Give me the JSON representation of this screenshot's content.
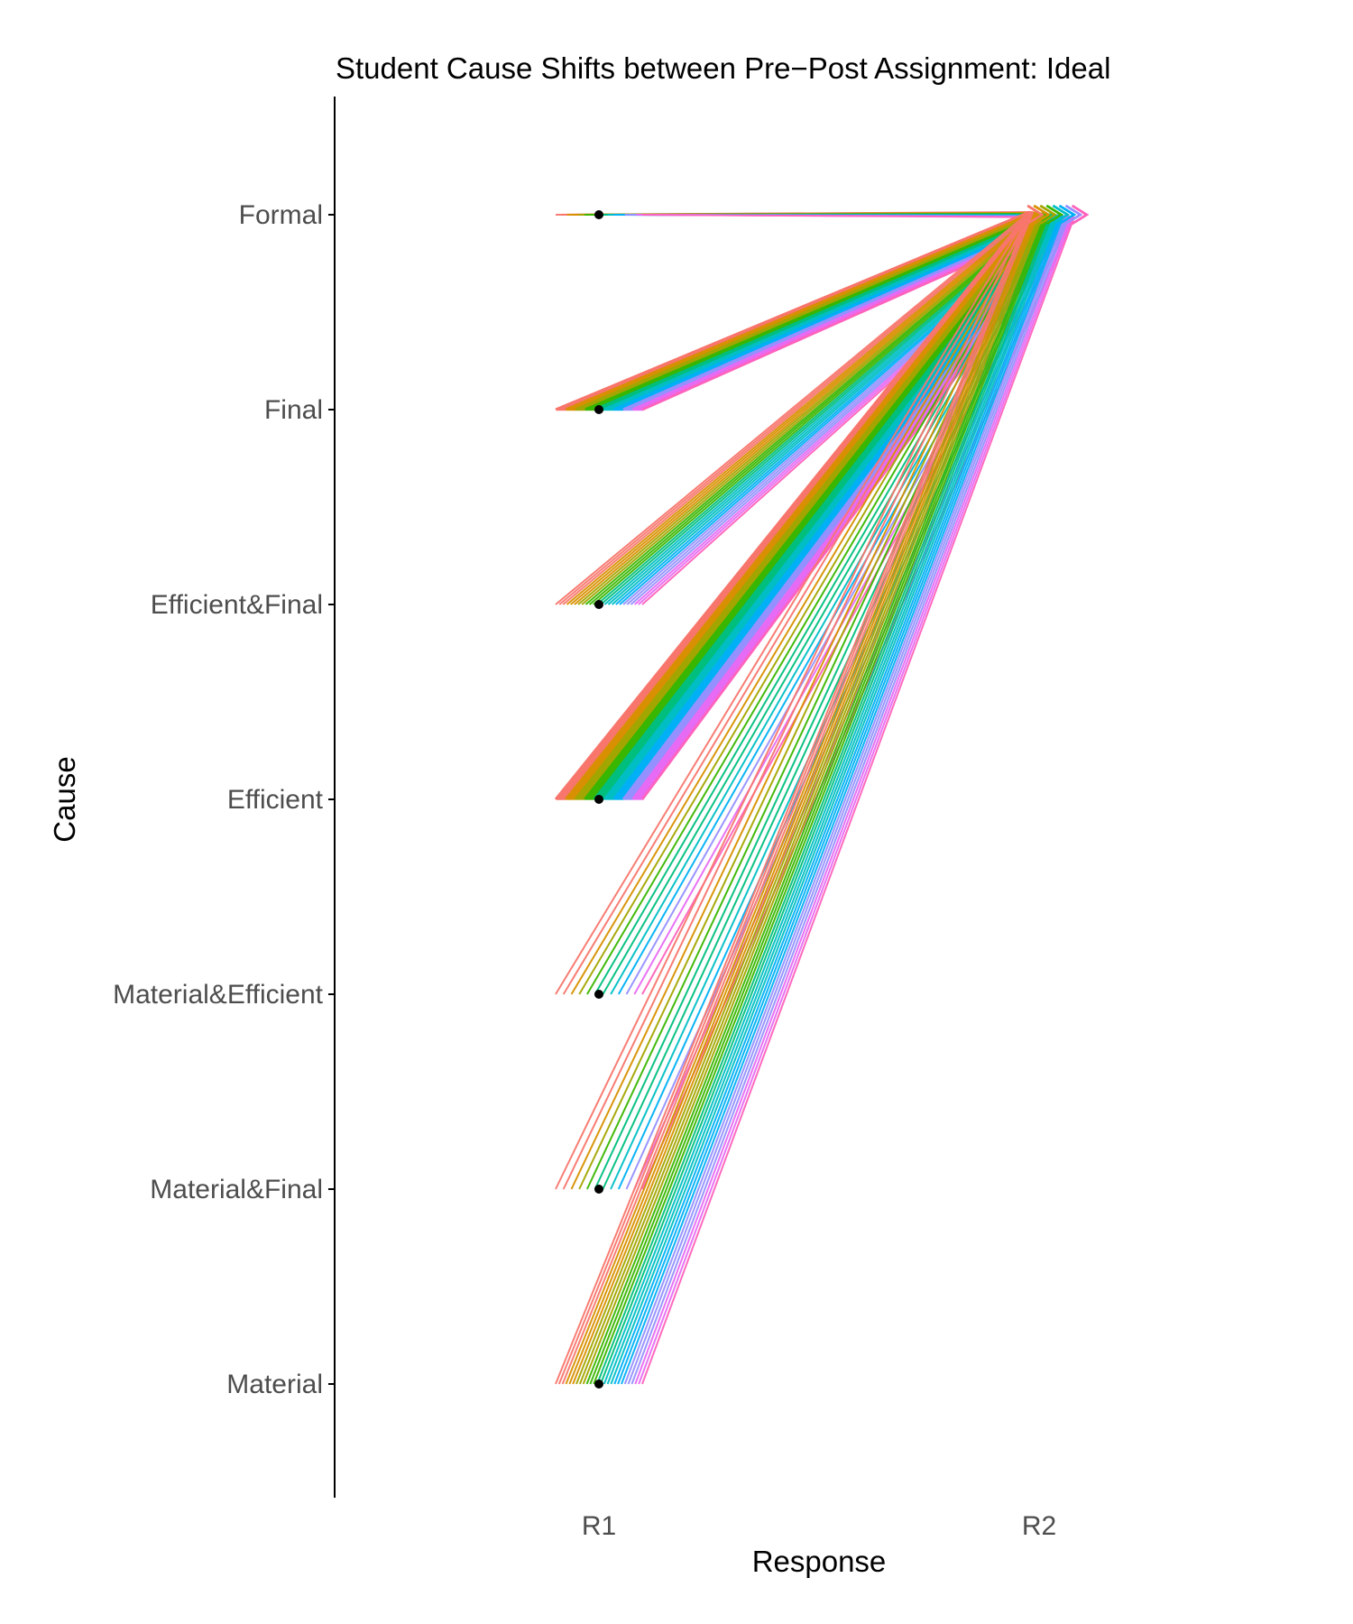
{
  "chart_data": {
    "type": "line",
    "title": "Student Cause Shifts between Pre−Post Assignment: Ideal",
    "xlabel": "Response",
    "ylabel": "Cause",
    "categories_x": [
      "R1",
      "R2"
    ],
    "categories_y": [
      "Formal",
      "Final",
      "Efficient&Final",
      "Efficient",
      "Material&Efficient",
      "Material&Final",
      "Material"
    ],
    "grid": false,
    "legend": "none",
    "target": "Formal",
    "flows": [
      {
        "from": "Formal",
        "to": "Formal",
        "count": 16
      },
      {
        "from": "Final",
        "to": "Formal",
        "count": 110
      },
      {
        "from": "Efficient&Final",
        "to": "Formal",
        "count": 24
      },
      {
        "from": "Efficient",
        "to": "Formal",
        "count": 120
      },
      {
        "from": "Material&Efficient",
        "to": "Formal",
        "count": 12
      },
      {
        "from": "Material&Final",
        "to": "Formal",
        "count": 12
      },
      {
        "from": "Material",
        "to": "Formal",
        "count": 26
      }
    ],
    "points": [
      {
        "x": "R1",
        "y": "Formal"
      },
      {
        "x": "R1",
        "y": "Final"
      },
      {
        "x": "R1",
        "y": "Efficient&Final"
      },
      {
        "x": "R1",
        "y": "Efficient"
      },
      {
        "x": "R1",
        "y": "Material&Efficient"
      },
      {
        "x": "R1",
        "y": "Material&Final"
      },
      {
        "x": "R1",
        "y": "Material"
      }
    ],
    "palette": [
      "#f8766d",
      "#d89000",
      "#a3a500",
      "#39b600",
      "#00bf7d",
      "#00bfc4",
      "#00b0f6",
      "#9590ff",
      "#e76bf3",
      "#ff62bc"
    ],
    "point_color": "#000000",
    "axis_color": "#000000"
  }
}
